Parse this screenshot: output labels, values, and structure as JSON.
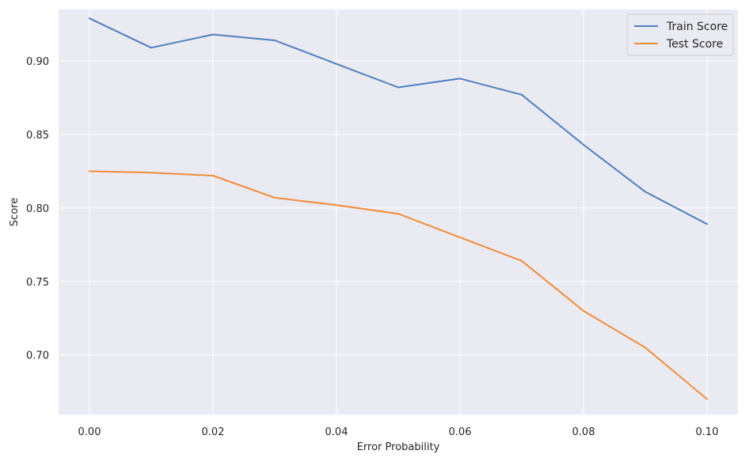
{
  "chart_data": {
    "type": "line",
    "title": "",
    "xlabel": "Error Probability",
    "ylabel": "Score",
    "xlim": [
      -0.005,
      0.105
    ],
    "ylim": [
      0.6595,
      0.935
    ],
    "x": [
      0.0,
      0.01,
      0.02,
      0.03,
      0.04,
      0.05,
      0.06,
      0.07,
      0.08,
      0.09,
      0.1
    ],
    "x_ticks": [
      0.0,
      0.02,
      0.04,
      0.06,
      0.08,
      0.1
    ],
    "x_tick_labels": [
      "0.00",
      "0.02",
      "0.04",
      "0.06",
      "0.08",
      "0.10"
    ],
    "y_ticks": [
      0.7,
      0.75,
      0.8,
      0.85,
      0.9
    ],
    "y_tick_labels": [
      "0.70",
      "0.75",
      "0.80",
      "0.85",
      "0.90"
    ],
    "grid": true,
    "legend_position": "top-right",
    "series": [
      {
        "name": "Train Score",
        "color": "#4c7fbf",
        "values": [
          0.929,
          0.909,
          0.918,
          0.914,
          0.898,
          0.882,
          0.888,
          0.877,
          0.843,
          0.811,
          0.789
        ]
      },
      {
        "name": "Test Score",
        "color": "#f28c38",
        "values": [
          0.825,
          0.824,
          0.822,
          0.807,
          0.802,
          0.796,
          0.78,
          0.764,
          0.73,
          0.705,
          0.67
        ]
      }
    ],
    "colors": {
      "plot_background": "#eaeaf2",
      "grid": "#ffffff",
      "text": "#262626"
    }
  }
}
